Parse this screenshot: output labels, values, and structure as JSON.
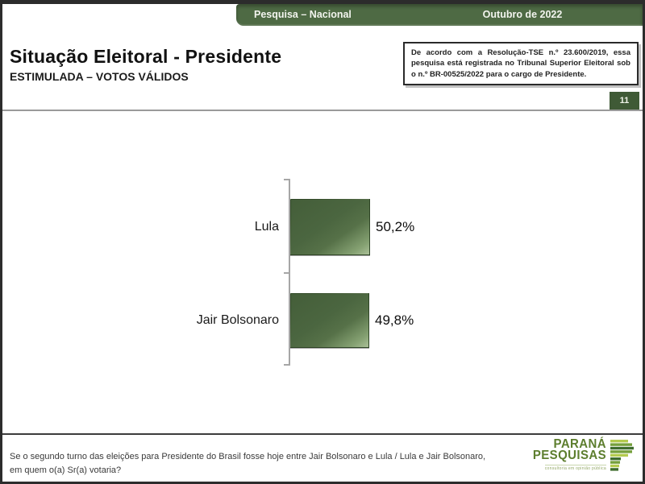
{
  "header": {
    "left_label": "Pesquisa – Nacional",
    "right_label": "Outubro de 2022"
  },
  "title": {
    "main": "Situação Eleitoral - Presidente",
    "subtitle": "ESTIMULADA – VOTOS VÁLIDOS"
  },
  "disclaimer": {
    "text": "De acordo com a Resolução-TSE n.º 23.600/2019, essa pesquisa está registrada no Tribunal Superior Eleitoral sob o n.º BR-00525/2022 para o cargo de Presidente."
  },
  "page_number": "11",
  "chart_data": {
    "type": "bar",
    "orientation": "horizontal",
    "categories": [
      "Lula",
      "Jair Bolsonaro"
    ],
    "values": [
      50.2,
      49.8
    ],
    "value_labels": [
      "50,2%",
      "49,8%"
    ],
    "title": "",
    "xlabel": "",
    "ylabel": "",
    "xlim": [
      0,
      100
    ],
    "grid": false,
    "legend": false,
    "bar_color": "#4b6640",
    "bar_highlight": "#abc098",
    "axis_color": "#a6a6a6"
  },
  "footer": {
    "question": "Se o segundo turno das eleições para Presidente do Brasil fosse hoje entre Jair Bolsonaro e Lula / Lula e Jair Bolsonaro,\nem quem o(a) Sr(a) votaria?"
  },
  "logo": {
    "line1": "PARANÁ",
    "line2": "PESQUISAS",
    "tagline": "consultoria em opinião pública"
  },
  "colors": {
    "header_green": "#4e6a44",
    "badge_green": "#3f5a36",
    "logo_green": "#5d7e2e",
    "page_border": "#2c2c2c"
  }
}
